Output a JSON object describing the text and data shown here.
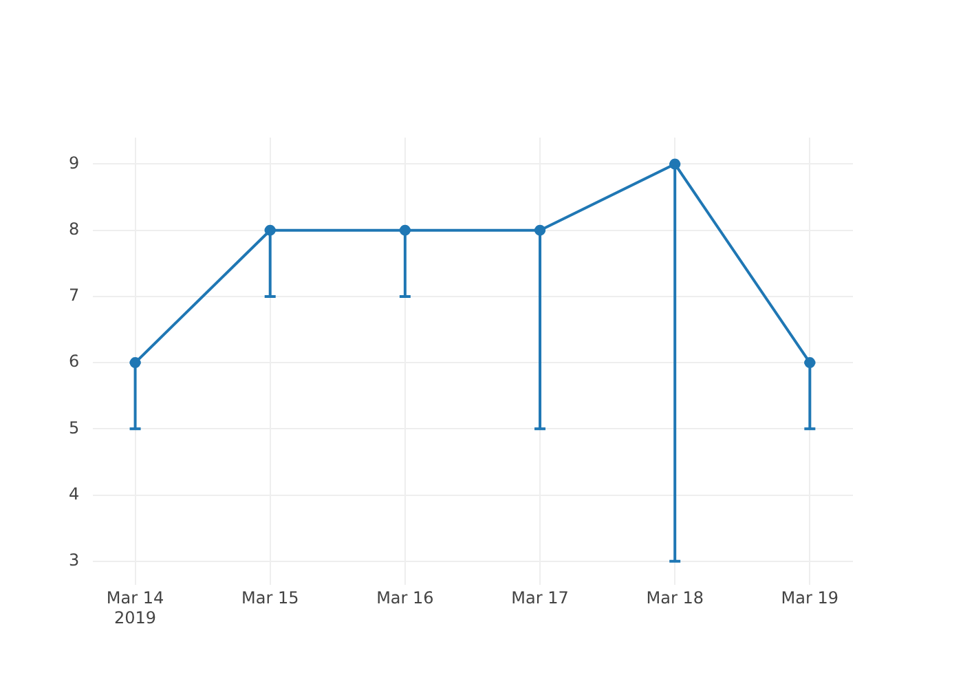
{
  "chart_data": {
    "type": "line",
    "x": [
      "2019-03-14",
      "2019-03-15",
      "2019-03-16",
      "2019-03-17",
      "2019-03-18",
      "2019-03-19"
    ],
    "series": [
      {
        "color": "#1f77b4",
        "values": [
          6,
          8,
          8,
          8,
          9,
          6
        ],
        "errors": [
          [
            5,
            6
          ],
          [
            7,
            8
          ],
          [
            7,
            8
          ],
          [
            5,
            8
          ],
          [
            3,
            9
          ],
          [
            5,
            6
          ]
        ]
      }
    ],
    "xlim": [
      "2019-03-13T16:30",
      "2019-03-19T07:40"
    ],
    "xticks": [
      {
        "value": "2019-03-14",
        "label": "Mar 14\n2019"
      },
      {
        "value": "2019-03-15",
        "label": "Mar 15"
      },
      {
        "value": "2019-03-16",
        "label": "Mar 16"
      },
      {
        "value": "2019-03-17",
        "label": "Mar 17"
      },
      {
        "value": "2019-03-18",
        "label": "Mar 18"
      },
      {
        "value": "2019-03-19",
        "label": "Mar 19"
      }
    ],
    "ylim": [
      2.64,
      9.4
    ],
    "yticks": [
      3,
      4,
      5,
      6,
      7,
      8,
      9
    ],
    "grid": true,
    "legend": false,
    "marker": "circle",
    "line_style": "solid"
  }
}
